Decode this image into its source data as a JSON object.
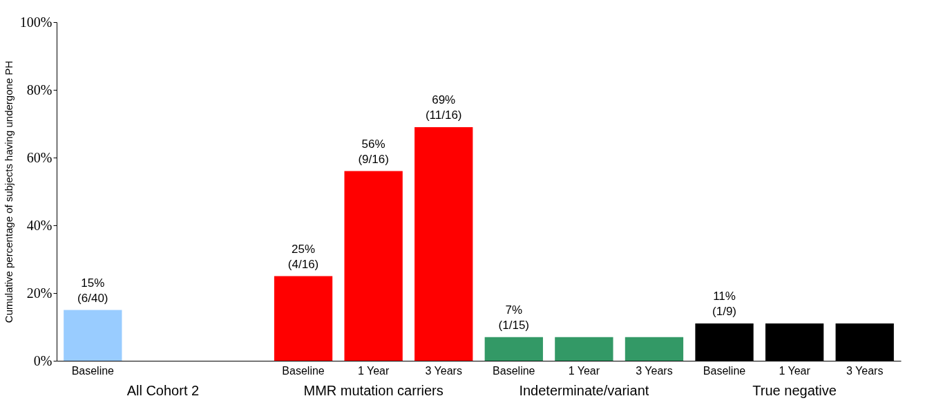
{
  "chart_data": {
    "type": "bar",
    "ylabel": "Cumulative percentage of subjects having undergone PH",
    "categories": [
      "Baseline",
      null,
      null,
      "Baseline",
      "1 Year",
      "3 Years",
      "Baseline",
      "1 Year",
      "3 Years",
      "Baseline",
      "1 Year",
      "3 Years"
    ],
    "values": [
      15,
      null,
      null,
      25,
      56,
      69,
      7,
      7,
      7,
      11,
      11,
      11
    ],
    "colors": [
      "#99ccff",
      null,
      null,
      "#ff0000",
      "#ff0000",
      "#ff0000",
      "#339966",
      "#339966",
      "#339966",
      "#000000",
      "#000000",
      "#000000"
    ],
    "value_labels": [
      "15%\n(6/40)",
      null,
      null,
      "25%\n(4/16)",
      "56%\n(9/16)",
      "69%\n(11/16)",
      "7%\n(1/15)",
      null,
      null,
      "11%\n(1/9)",
      null,
      null
    ],
    "ylim": [
      0,
      100
    ],
    "yticks": [
      {
        "value": 0,
        "label": "0%"
      },
      {
        "value": 20,
        "label": "20%"
      },
      {
        "value": 40,
        "label": "40%"
      },
      {
        "value": 60,
        "label": "60%"
      },
      {
        "value": 80,
        "label": "80%"
      },
      {
        "value": 100,
        "label": "100%"
      }
    ],
    "annotations": [
      "All Cohort 2",
      "MMR mutation carriers",
      "Indeterminate/variant",
      "True negative"
    ],
    "grid": false
  }
}
